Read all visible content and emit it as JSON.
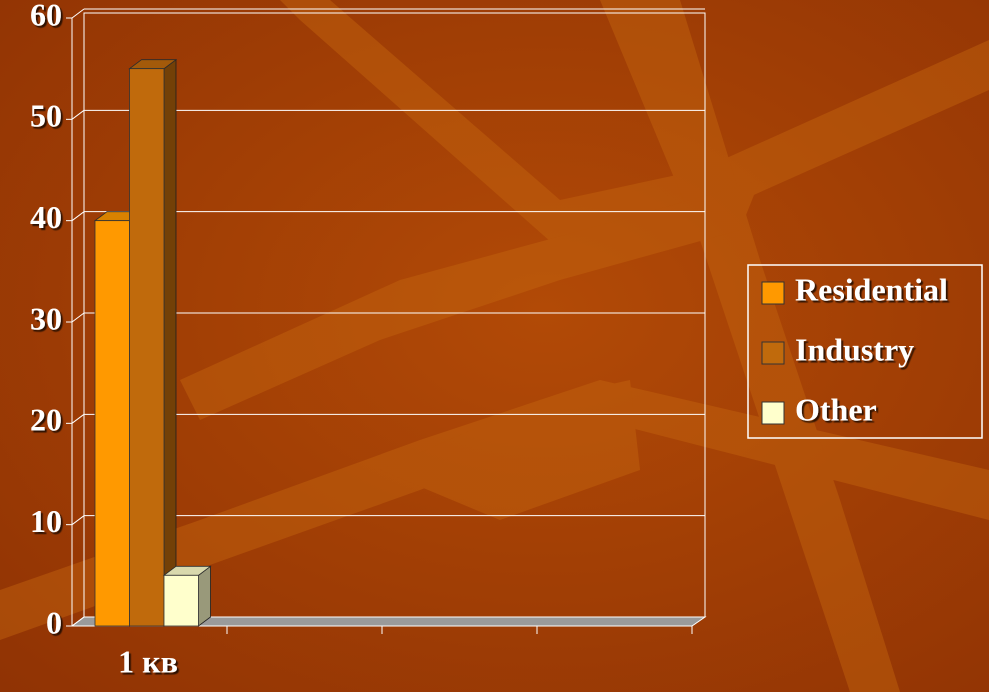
{
  "chart_data": {
    "type": "bar3d",
    "categories": [
      "1 кв",
      null,
      null,
      null
    ],
    "series": [
      {
        "name": "Residential",
        "color": "#ff9900",
        "values": [
          40,
          null,
          null,
          null
        ]
      },
      {
        "name": "Industry",
        "color": "#c06a0c",
        "values": [
          55,
          null,
          null,
          null
        ]
      },
      {
        "name": "Other",
        "color": "#ffffcc",
        "values": [
          5,
          null,
          null,
          null
        ]
      }
    ],
    "ylim": [
      0,
      60
    ],
    "yticks": [
      0,
      10,
      20,
      30,
      40,
      50,
      60
    ],
    "grid": true,
    "legend": "right"
  }
}
